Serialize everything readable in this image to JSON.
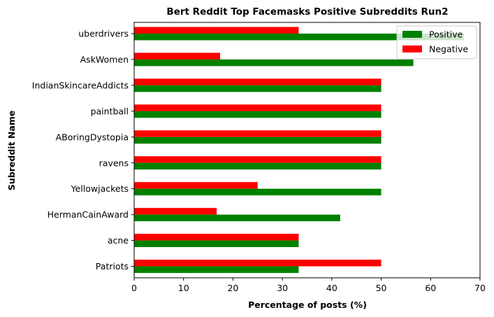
{
  "chart_data": {
    "type": "bar",
    "orientation": "horizontal",
    "title": "Bert Reddit Top Facemasks Positive Subreddits Run2",
    "xlabel": "Percentage of posts (%)",
    "ylabel": "Subreddit Name",
    "xlim": [
      0,
      70
    ],
    "xticks": [
      "0",
      "10",
      "20",
      "30",
      "40",
      "50",
      "60",
      "70"
    ],
    "categories": [
      "uberdrivers",
      "AskWomen",
      "IndianSkincareAddicts",
      "paintball",
      "ABoringDystopia",
      "ravens",
      "Yellowjackets",
      "HermanCainAward",
      "acne",
      "Patriots"
    ],
    "series": [
      {
        "name": "Positive",
        "color": "#008000",
        "values": [
          66.7,
          56.5,
          50,
          50,
          50,
          50,
          50,
          41.7,
          33.3,
          33.3
        ]
      },
      {
        "name": "Negative",
        "color": "#ff0000",
        "values": [
          33.3,
          17.4,
          50,
          50,
          50,
          50,
          25,
          16.7,
          33.3,
          50
        ]
      }
    ],
    "legend": {
      "position": "upper right"
    },
    "grid": false
  }
}
